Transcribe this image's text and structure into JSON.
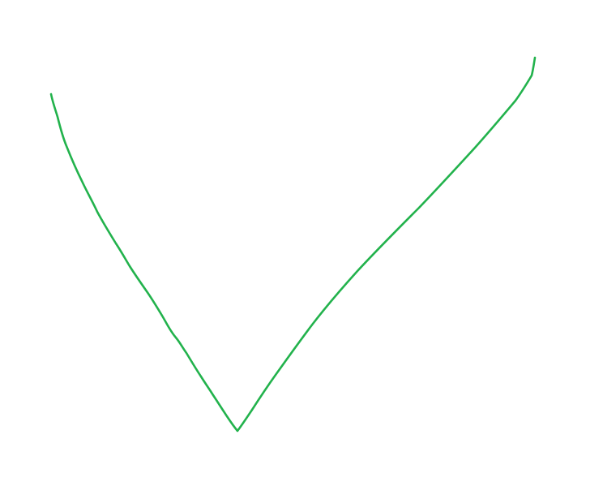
{
  "drawing": {
    "icon": "checkmark-icon",
    "stroke_color": "#22b24c",
    "background_color": "#ffffff"
  }
}
